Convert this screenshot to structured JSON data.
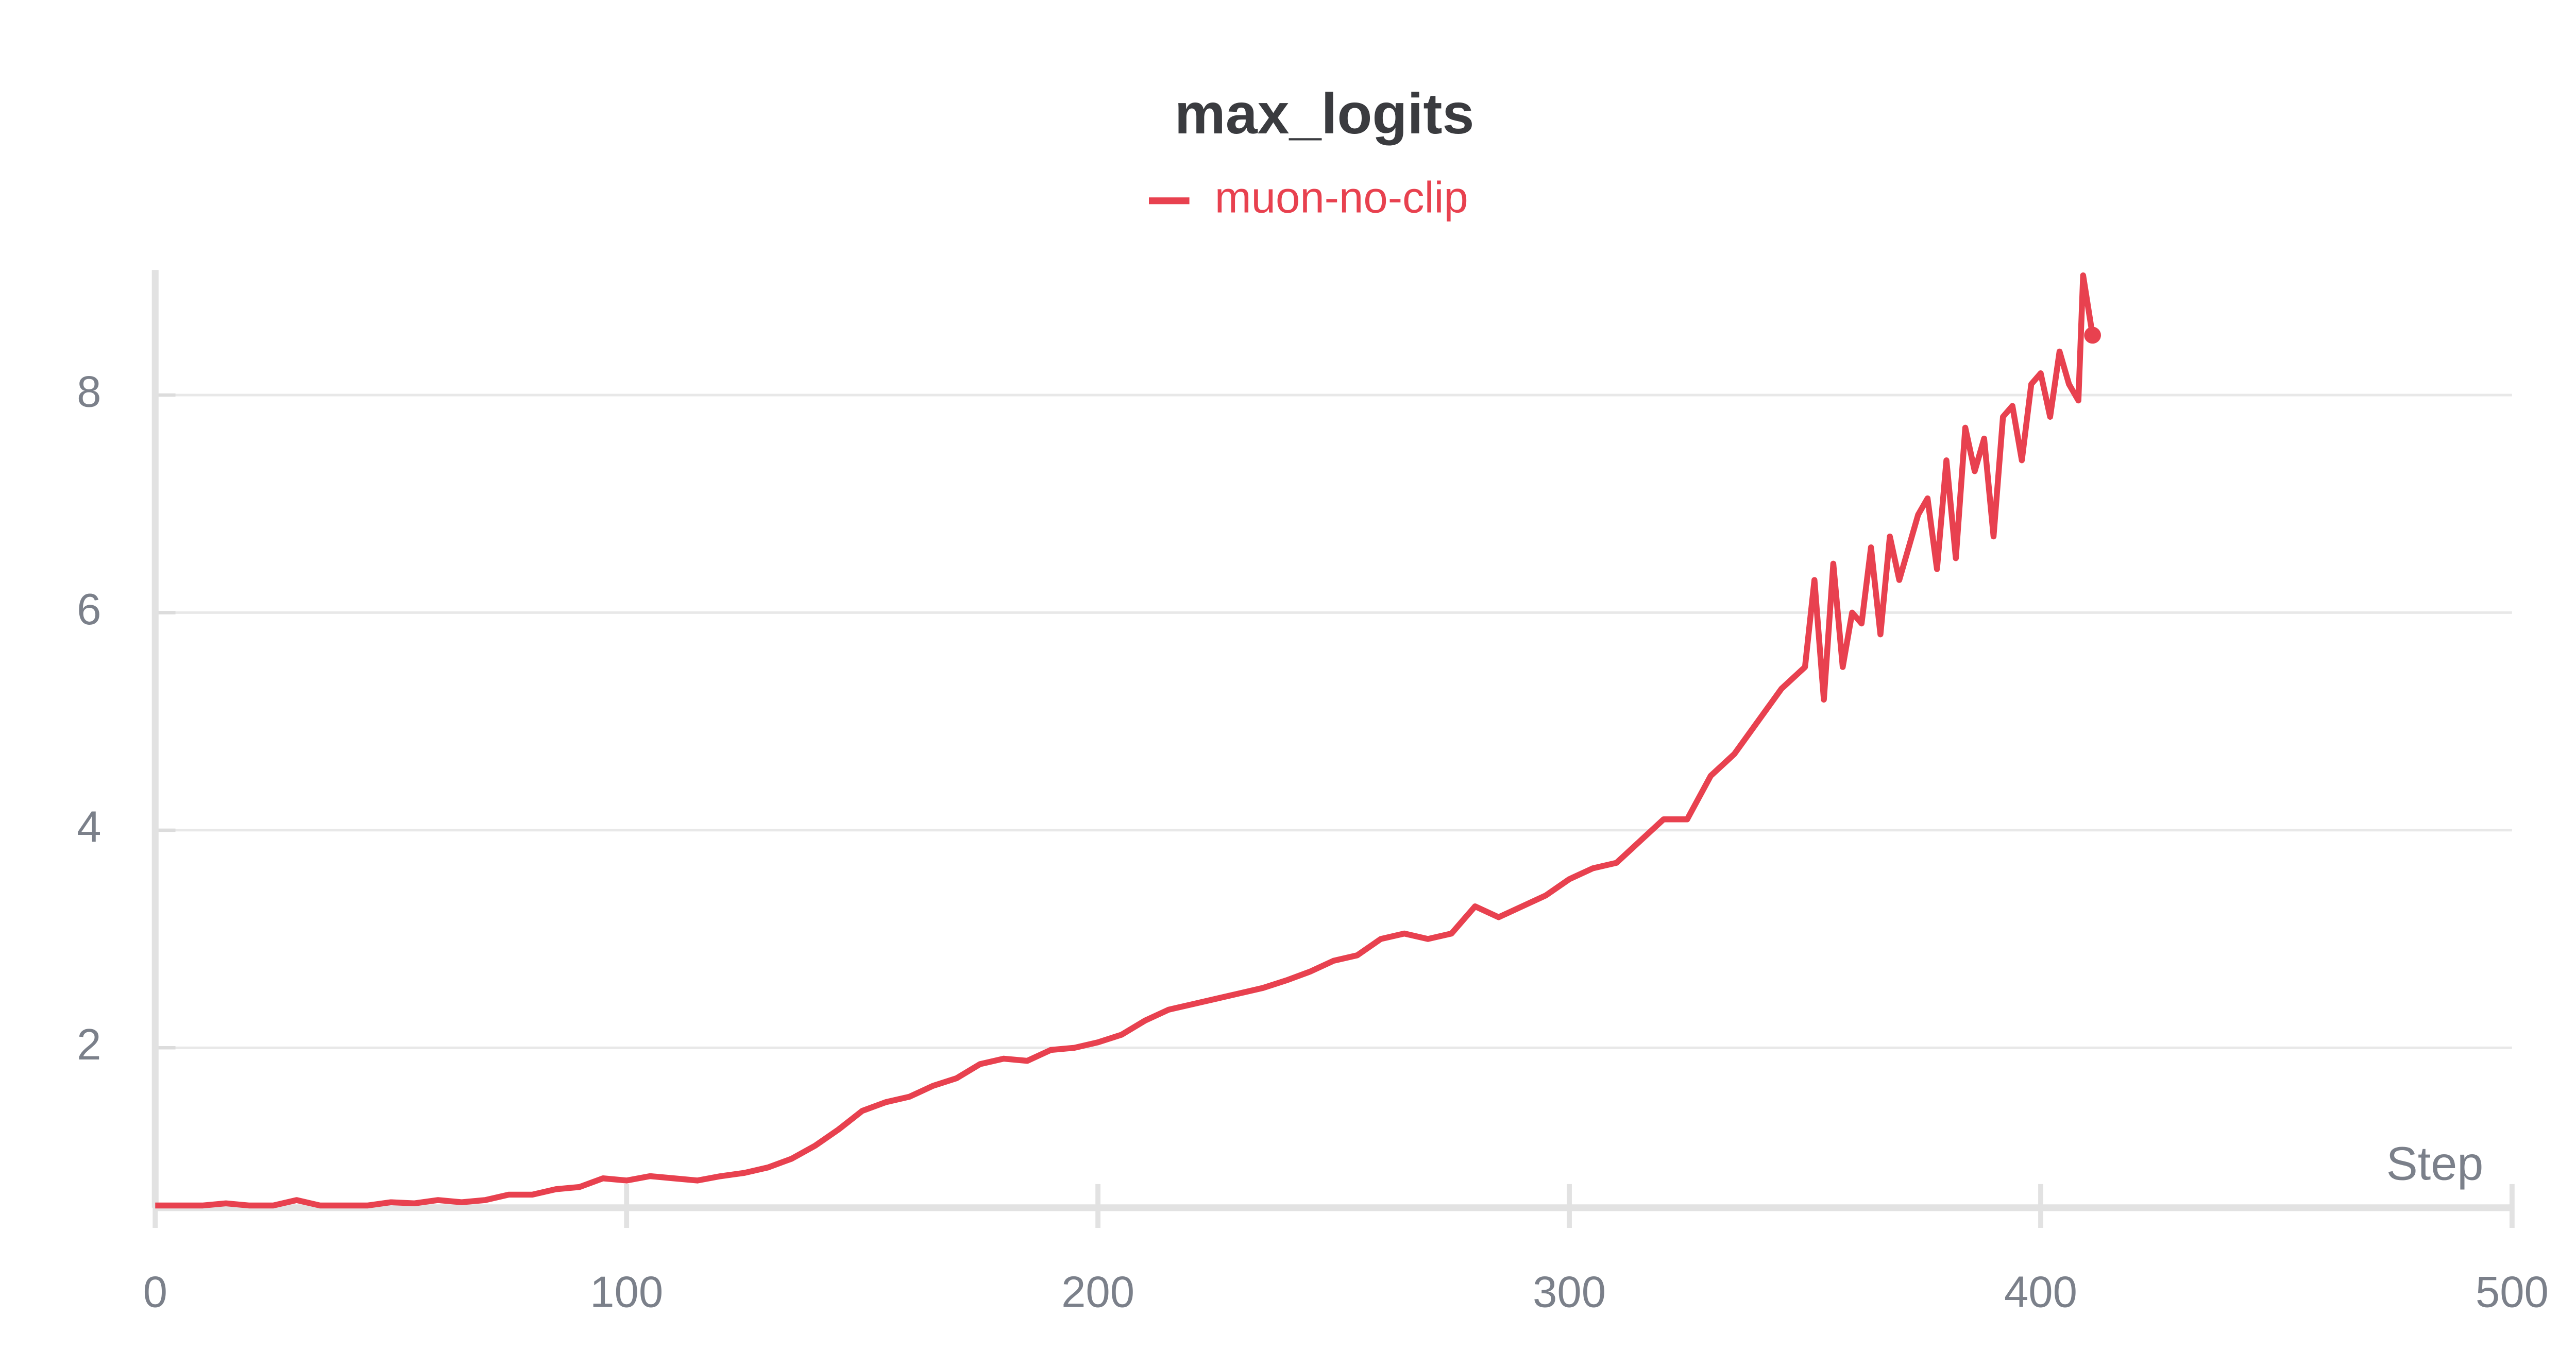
{
  "chart_data": {
    "type": "line",
    "title": "max_logits",
    "x_label": "Step",
    "series": [
      {
        "name": "muon-no-clip",
        "color": "#e8414f",
        "x": [
          0,
          5,
          10,
          15,
          20,
          25,
          30,
          35,
          40,
          45,
          50,
          55,
          60,
          65,
          70,
          75,
          80,
          85,
          90,
          95,
          100,
          105,
          110,
          115,
          120,
          125,
          130,
          135,
          140,
          145,
          150,
          155,
          160,
          165,
          170,
          175,
          180,
          185,
          190,
          195,
          200,
          205,
          210,
          215,
          220,
          225,
          230,
          235,
          240,
          245,
          250,
          255,
          260,
          265,
          270,
          275,
          280,
          285,
          290,
          295,
          300,
          305,
          310,
          315,
          320,
          325,
          330,
          335,
          340,
          345,
          350,
          352,
          354,
          356,
          358,
          360,
          362,
          364,
          366,
          368,
          370,
          372,
          374,
          376,
          378,
          380,
          382,
          384,
          386,
          388,
          390,
          392,
          394,
          396,
          398,
          400,
          402,
          404,
          406,
          408,
          409,
          411
        ],
        "values": [
          0.55,
          0.55,
          0.55,
          0.57,
          0.55,
          0.55,
          0.6,
          0.55,
          0.55,
          0.55,
          0.58,
          0.57,
          0.6,
          0.58,
          0.6,
          0.65,
          0.65,
          0.7,
          0.72,
          0.8,
          0.78,
          0.82,
          0.8,
          0.78,
          0.82,
          0.85,
          0.9,
          0.98,
          1.1,
          1.25,
          1.42,
          1.5,
          1.55,
          1.65,
          1.72,
          1.85,
          1.9,
          1.88,
          1.98,
          2.0,
          2.05,
          2.12,
          2.25,
          2.35,
          2.4,
          2.45,
          2.5,
          2.55,
          2.62,
          2.7,
          2.8,
          2.85,
          3.0,
          3.05,
          3.0,
          3.05,
          3.3,
          3.2,
          3.3,
          3.4,
          3.55,
          3.65,
          3.7,
          3.9,
          4.1,
          4.1,
          4.5,
          4.7,
          5.0,
          5.3,
          5.5,
          6.3,
          5.2,
          6.45,
          5.5,
          6.0,
          5.9,
          6.6,
          5.8,
          6.7,
          6.3,
          6.6,
          6.9,
          7.05,
          6.4,
          7.4,
          6.5,
          7.7,
          7.3,
          7.6,
          6.7,
          7.8,
          7.9,
          7.4,
          8.1,
          8.2,
          7.8,
          8.4,
          8.1,
          7.95,
          9.1,
          8.55
        ]
      }
    ],
    "xlim": [
      0,
      500
    ],
    "xticks": [
      0,
      100,
      200,
      300,
      400,
      500
    ],
    "ylim": [
      0.53,
      9.15
    ],
    "yticks": [
      2,
      4,
      6,
      8
    ],
    "grid": true
  }
}
